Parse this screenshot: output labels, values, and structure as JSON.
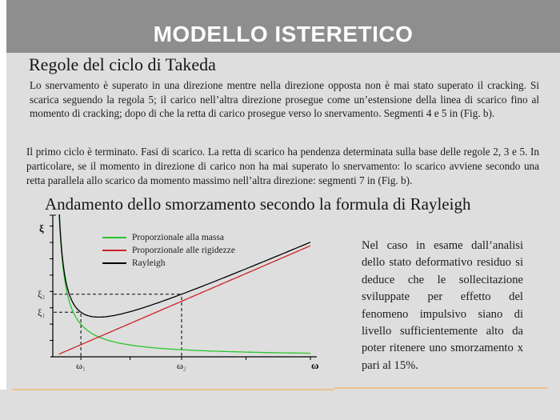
{
  "slide": {
    "title": "MODELLO ISTERETICO",
    "heading_takeda": "Regole del ciclo di Takeda",
    "paragraph_unloading": "Lo snervamento è superato in una direzione mentre nella direzione opposta non è mai stato superato il cracking. Si scarica seguendo la regola 5; il carico nell’altra direzione prosegue come un’estensione della linea di scarico fino al momento di cracking; dopo di che la retta di carico prosegue verso lo snervamento. Segmenti 4 e 5 in (Fig. b).",
    "paragraph_first_cycle": "Il primo ciclo è terminato. Fasi di scarico. La retta di scarico ha pendenza determinata sulla base delle regole 2, 3 e 5. In particolare, se il momento in direzione di carico non ha mai superato lo snervamento: lo scarico avviene secondo una retta parallela allo scarico da momento massimo nell’altra direzione: segmenti 7 in (Fig. b).",
    "heading_rayleigh": "Andamento dello smorzamento secondo la formula di Rayleigh",
    "side_note": "Nel caso in esame dall’analisi dello stato deformativo residuo si deduce che le sollecitazione sviluppate per effetto del fenomeno impulsivo siano di livello sufficientemente alto da poter ritenere uno smorzamento x pari al 15%."
  },
  "chart_data": {
    "type": "line",
    "title": "Andamento dello smorzamento secondo la formula di Rayleigh",
    "xlabel": "ω",
    "ylabel": "ξ",
    "grid": false,
    "legend_position": "top-left-inside",
    "x_range_normalized": [
      0,
      1
    ],
    "y_range_normalized": [
      0,
      1
    ],
    "series": [
      {
        "name": "Proporzionale alla massa",
        "color": "#2bc42b",
        "model": "mass_proportional",
        "formula": "xi = a/(2*omega)",
        "a": 0.0515
      },
      {
        "name": "Proporzionale alle rigidezze",
        "color": "#cc2328",
        "model": "stiffness_proportional",
        "formula": "xi = b*omega/2",
        "b": 1.614
      },
      {
        "name": "Rayleigh",
        "color": "#000000",
        "model": "sum_rayleigh",
        "formula": "xi = a/(2*omega) + b*omega/2"
      }
    ],
    "markers": {
      "x": [
        {
          "base": "ω",
          "sub": "1",
          "t": 0.109,
          "v": 0.324
        },
        {
          "base": "ω",
          "sub": "2",
          "t": 0.5,
          "v": 0.455
        }
      ],
      "y": [
        {
          "base": "ξ",
          "sub": "2",
          "v": 0.455,
          "t": 0.5
        },
        {
          "base": "ξ",
          "sub": "1",
          "v": 0.324,
          "t": 0.109
        }
      ]
    },
    "x_ticks_t": [
      0.109,
      0.3,
      0.5,
      0.75,
      1.0
    ],
    "y_tick_count": 8,
    "sample_points": {
      "t_start": 0.024,
      "t_end": 1.0,
      "step": 0.004
    }
  }
}
